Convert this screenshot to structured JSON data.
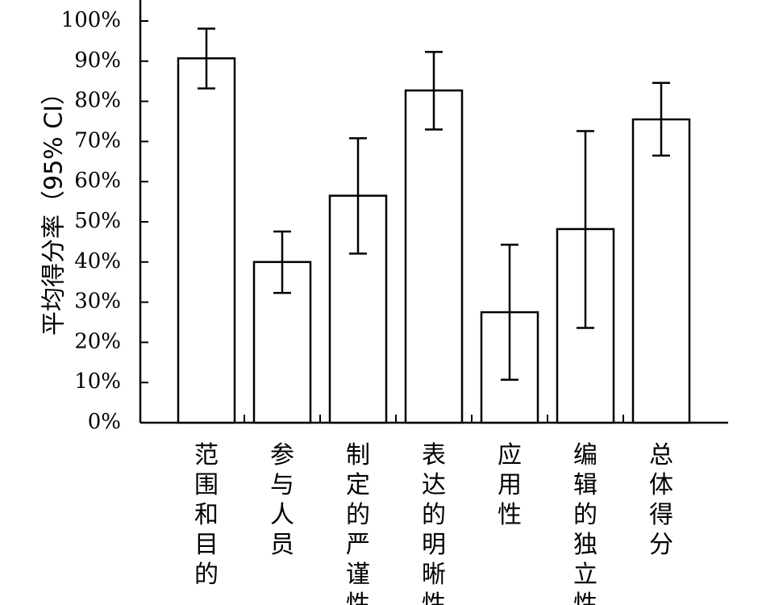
{
  "chart_data": {
    "type": "bar",
    "ylabel": "平均得分率（95% CI）",
    "ylim": [
      0,
      100
    ],
    "yticks": [
      "0%",
      "10%",
      "20%",
      "30%",
      "40%",
      "50%",
      "60%",
      "70%",
      "80%",
      "90%",
      "100%"
    ],
    "categories": [
      "范围和目的",
      "参与人员",
      "制定的严谨性",
      "表达的明晰性",
      "应用性",
      "编辑的独立性",
      "总体得分"
    ],
    "values": [
      90.7,
      40.0,
      56.5,
      82.7,
      27.5,
      48.2,
      75.5
    ],
    "ci_lower": [
      83.2,
      32.3,
      42.1,
      73.0,
      10.7,
      23.6,
      66.5
    ],
    "ci_upper": [
      98.1,
      47.6,
      70.8,
      92.3,
      44.3,
      72.6,
      84.6
    ],
    "colors": {
      "bar_fill": "#ffffff",
      "stroke": "#000000"
    },
    "grid": false,
    "legend": "none"
  }
}
